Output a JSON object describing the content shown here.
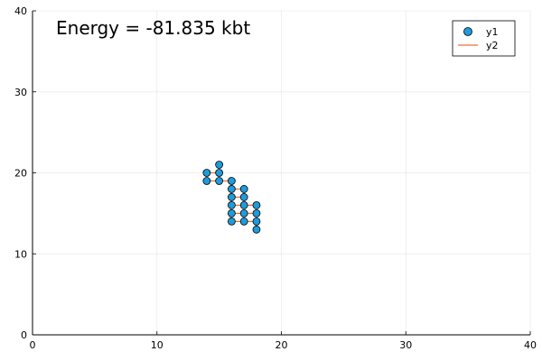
{
  "chart_data": {
    "type": "scatter",
    "title": "",
    "xlabel": "",
    "ylabel": "",
    "xlim": [
      0,
      40
    ],
    "ylim": [
      0,
      40
    ],
    "xticks": [
      "0",
      "10",
      "20",
      "30",
      "40"
    ],
    "yticks": [
      "0",
      "10",
      "20",
      "30",
      "40"
    ],
    "grid": true,
    "legend_position": "top-right",
    "annotation": "Energy = -81.835 kbt",
    "series": [
      {
        "name": "y1",
        "kind": "scatter",
        "color": "#1f9bdc",
        "x": [
          14,
          14,
          15,
          15,
          15,
          16,
          16,
          16,
          16,
          16,
          16,
          17,
          17,
          17,
          17,
          17,
          18,
          18,
          18,
          18
        ],
        "y": [
          20,
          19,
          21,
          20,
          19,
          19,
          18,
          17,
          16,
          15,
          14,
          18,
          17,
          16,
          15,
          14,
          16,
          15,
          14,
          13
        ]
      },
      {
        "name": "y2",
        "kind": "line",
        "color": "#e8743b",
        "segments": [
          [
            [
              14,
              20
            ],
            [
              15,
              20
            ]
          ],
          [
            [
              14,
              19
            ],
            [
              16,
              19
            ]
          ],
          [
            [
              16,
              18
            ],
            [
              17,
              18
            ]
          ],
          [
            [
              16,
              17
            ],
            [
              17,
              17
            ]
          ],
          [
            [
              16,
              16
            ],
            [
              18,
              16
            ]
          ],
          [
            [
              16,
              15
            ],
            [
              18,
              15
            ]
          ],
          [
            [
              16,
              14
            ],
            [
              18,
              14
            ]
          ]
        ]
      }
    ]
  }
}
